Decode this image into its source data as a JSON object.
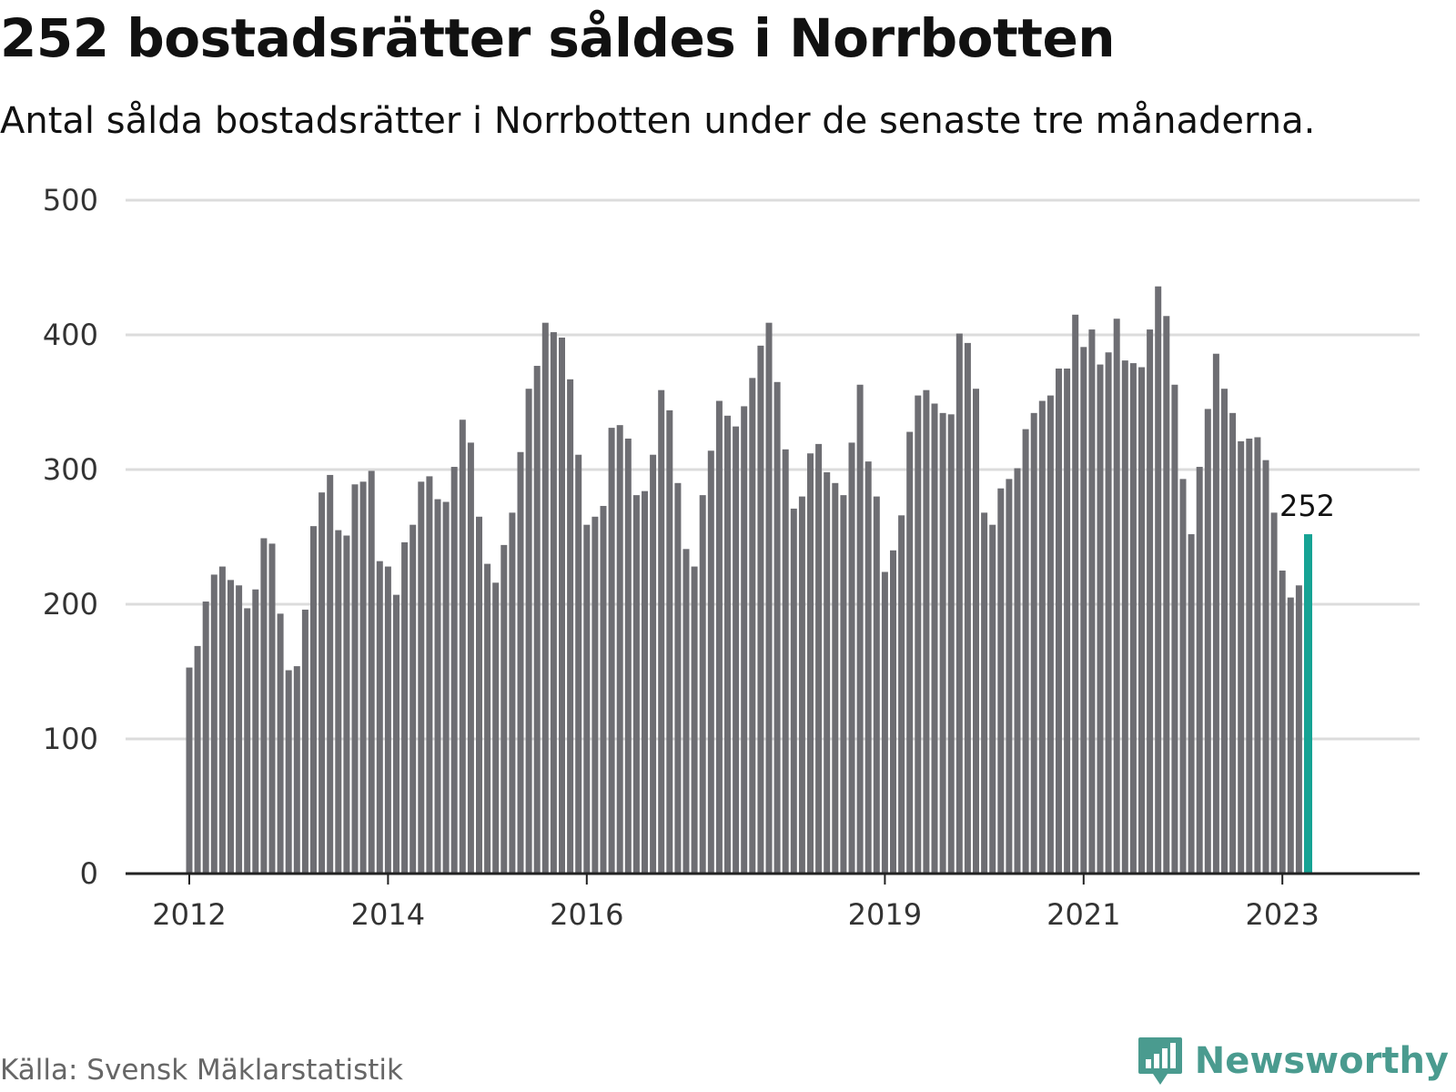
{
  "header": {
    "title": "252 bostadsrätter såldes i Norrbotten",
    "subtitle": "Antal sålda bostadsrätter i Norrbotten under de senaste tre månaderna."
  },
  "footer": {
    "source": "Källa: Svensk Mäklarstatistik",
    "brand": "Newsworthy",
    "brand_icon": "chart-bubble-icon"
  },
  "colors": {
    "bar": "#6e6e73",
    "highlight": "#16a394",
    "grid": "#dcdcdc",
    "axis": "#222222",
    "brand": "#4a9b8f"
  },
  "chart_data": {
    "type": "bar",
    "title": "252 bostadsrätter såldes i Norrbotten",
    "subtitle": "Antal sålda bostadsrätter i Norrbotten under de senaste tre månaderna.",
    "xlabel": "",
    "ylabel": "",
    "ylim": [
      0,
      500
    ],
    "yticks": [
      "0",
      "100",
      "200",
      "300",
      "400",
      "500"
    ],
    "xticks": [
      {
        "label": "2012",
        "index": 0
      },
      {
        "label": "2014",
        "index": 24
      },
      {
        "label": "2016",
        "index": 48
      },
      {
        "label": "2019",
        "index": 84
      },
      {
        "label": "2021",
        "index": 108
      },
      {
        "label": "2023",
        "index": 132
      }
    ],
    "grid": true,
    "start_period": "2012-01",
    "interval": "month",
    "values": [
      153,
      169,
      202,
      222,
      228,
      218,
      214,
      197,
      211,
      249,
      245,
      193,
      151,
      154,
      196,
      258,
      283,
      296,
      255,
      251,
      289,
      291,
      299,
      232,
      228,
      207,
      246,
      259,
      291,
      295,
      278,
      276,
      302,
      337,
      320,
      265,
      230,
      216,
      244,
      268,
      313,
      360,
      377,
      409,
      402,
      398,
      367,
      311,
      259,
      265,
      273,
      331,
      333,
      323,
      281,
      284,
      311,
      359,
      344,
      290,
      241,
      228,
      281,
      314,
      351,
      340,
      332,
      347,
      368,
      392,
      409,
      365,
      315,
      271,
      280,
      312,
      319,
      298,
      290,
      281,
      320,
      363,
      306,
      280,
      224,
      240,
      266,
      328,
      355,
      359,
      349,
      342,
      341,
      401,
      394,
      360,
      268,
      259,
      286,
      293,
      301,
      330,
      342,
      351,
      355,
      375,
      375,
      415,
      391,
      404,
      378,
      387,
      412,
      381,
      379,
      376,
      404,
      436,
      414,
      363,
      293,
      252,
      302,
      345,
      386,
      360,
      342,
      321,
      323,
      324,
      307,
      268,
      225,
      205,
      214,
      252
    ],
    "highlight_index": 135,
    "highlight_label": "252"
  }
}
